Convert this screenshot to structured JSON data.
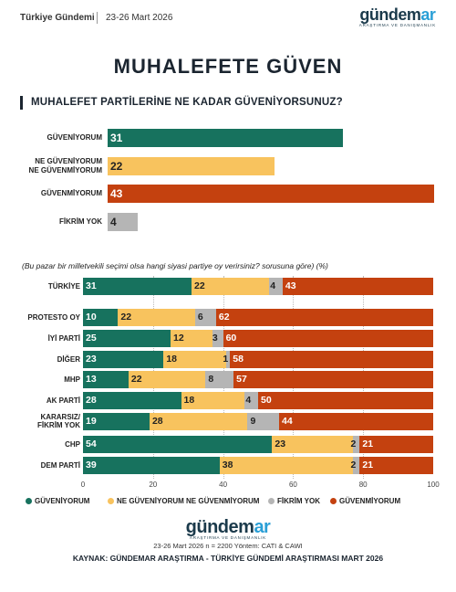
{
  "header": {
    "label": "Türkiye Gündemi",
    "date": "23-26 Mart 2026",
    "logo_main": "gündem",
    "logo_accent": "ar",
    "logo_sub": "ARAŞTIRMA VE DANIŞMANLIK"
  },
  "title": "MUHALEFETE GÜVEN",
  "colors": {
    "guveniyorum": "#17725e",
    "ne_ne": "#f8c35e",
    "fikrim_yok": "#b5b5b5",
    "guvenmiyorum": "#c4410f"
  },
  "chart_data": [
    {
      "type": "bar",
      "orientation": "horizontal",
      "title": "MUHALEFET PARTİLERİNE NE KADAR GÜVENİYORSUNUZ?",
      "categories": [
        "GÜVENİYORUM",
        "NE GÜVENİYORUM NE GÜVENMİYORUM",
        "GÜVENMİYORUM",
        "FİKRİM YOK"
      ],
      "category_lines": [
        [
          "GÜVENİYORUM"
        ],
        [
          "NE GÜVENİYORUM",
          "NE GÜVENMİYORUM"
        ],
        [
          "GÜVENMİYORUM"
        ],
        [
          "FİKRİM YOK"
        ]
      ],
      "values": [
        31,
        22,
        43,
        4
      ],
      "value_labels": [
        "31",
        "22",
        "43",
        "4"
      ],
      "colors": [
        "#17725e",
        "#f8c35e",
        "#c4410f",
        "#b5b5b5"
      ]
    },
    {
      "type": "bar",
      "orientation": "horizontal",
      "stacked": true,
      "title": "(Bu pazar bir milletvekili seçimi olsa hangi siyasi partiye oy verirsiniz? sorusuna göre) (%)",
      "categories": [
        "TÜRKİYE",
        "PROTESTO OY",
        "İYİ PARTİ",
        "DİĞER",
        "MHP",
        "AK PARTİ",
        "KARARSIZ/ FİKRİM YOK",
        "CHP",
        "DEM PARTİ"
      ],
      "category_lines": [
        [
          "TÜRKİYE"
        ],
        [
          "PROTESTO OY"
        ],
        [
          "İYİ PARTİ"
        ],
        [
          "DİĞER"
        ],
        [
          "MHP"
        ],
        [
          "AK PARTİ"
        ],
        [
          "KARARSIZ/",
          "FİKRİM YOK"
        ],
        [
          "CHP"
        ],
        [
          "DEM PARTİ"
        ]
      ],
      "series": [
        {
          "name": "GÜVENİYORUM",
          "color": "#17725e",
          "values": [
            31,
            10,
            25,
            23,
            13,
            28,
            19,
            54,
            39
          ]
        },
        {
          "name": "NE GÜVENİYORUM NE GÜVENMİYORUM",
          "color": "#f8c35e",
          "values": [
            22,
            22,
            12,
            18,
            22,
            18,
            28,
            23,
            38
          ]
        },
        {
          "name": "FİKRİM YOK",
          "color": "#b5b5b5",
          "values": [
            4,
            6,
            3,
            1,
            8,
            4,
            9,
            2,
            2
          ]
        },
        {
          "name": "GÜVENMİYORUM",
          "color": "#c4410f",
          "values": [
            43,
            62,
            60,
            58,
            57,
            50,
            44,
            21,
            21
          ]
        }
      ],
      "xlim": [
        0,
        100
      ],
      "xticks": [
        "0",
        "20",
        "40",
        "60",
        "80",
        "100"
      ],
      "legend": "bottom"
    }
  ],
  "footer": {
    "logo_main": "gündem",
    "logo_accent": "ar",
    "logo_sub": "ARAŞTIRMA VE DANIŞMANLIK",
    "method": "23-26 Mart 2026  n = 2200  Yöntem: CATI & CAWI",
    "source": "KAYNAK: GÜNDEMAR ARAŞTIRMA - TÜRKİYE GÜNDEMİ ARAŞTIRMASI MART 2026"
  }
}
